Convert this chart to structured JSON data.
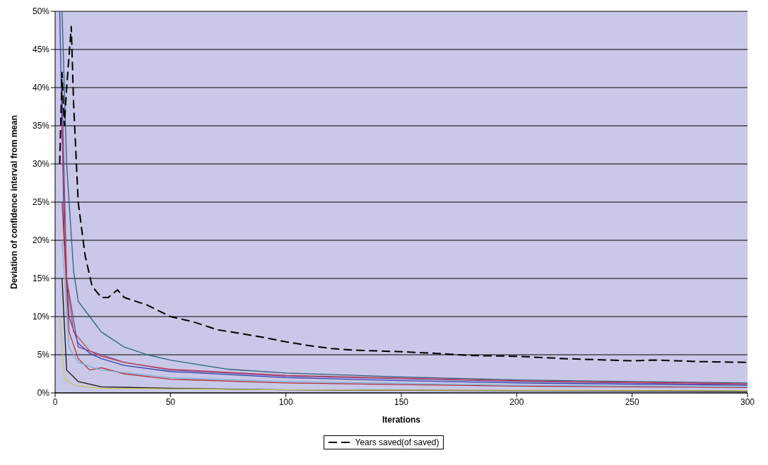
{
  "chart_data": {
    "type": "line",
    "xlabel": "Iterations",
    "ylabel": "Deviation of confidence interval from mean",
    "xlim": [
      0,
      300
    ],
    "xticks": [
      0,
      50,
      100,
      150,
      200,
      250,
      300
    ],
    "ylim": [
      0,
      50
    ],
    "yticks": [
      {
        "value": 0,
        "label": "0%"
      },
      {
        "value": 5,
        "label": "5%"
      },
      {
        "value": 10,
        "label": "10%"
      },
      {
        "value": 15,
        "label": "15%"
      },
      {
        "value": 20,
        "label": "20%"
      },
      {
        "value": 25,
        "label": "25%"
      },
      {
        "value": 30,
        "label": "30%"
      },
      {
        "value": 35,
        "label": "35%"
      },
      {
        "value": 40,
        "label": "40%"
      },
      {
        "value": 45,
        "label": "45%"
      },
      {
        "value": 50,
        "label": "50%"
      }
    ],
    "grid": "y",
    "legend": "bottom",
    "marker": "none",
    "series": [
      {
        "color": "#2f5f7a",
        "x": [
          3,
          5,
          8,
          10,
          15,
          20,
          30,
          40,
          50,
          75,
          100,
          150,
          200,
          250,
          300
        ],
        "values": [
          50,
          30,
          16,
          12,
          10,
          8,
          6,
          5,
          4.3,
          3.1,
          2.6,
          2.1,
          1.7,
          1.5,
          1.3
        ]
      },
      {
        "color": "#3344aa",
        "x": [
          2,
          4,
          6,
          10,
          15,
          20,
          30,
          50,
          100,
          150,
          200,
          300
        ],
        "values": [
          50,
          20,
          10,
          6.5,
          5.2,
          4.5,
          3.6,
          2.8,
          2,
          1.6,
          1.3,
          1
        ]
      },
      {
        "color": "#7a4a9a",
        "x": [
          3,
          5,
          10,
          15,
          20,
          30,
          50,
          100,
          200,
          300
        ],
        "values": [
          40,
          15,
          6,
          5.5,
          5,
          4,
          3,
          2.2,
          1.5,
          1.1
        ]
      },
      {
        "color": "#c0405a",
        "x": [
          3,
          5,
          8,
          15,
          20,
          30,
          50,
          100,
          200,
          300
        ],
        "values": [
          35,
          15,
          8,
          5.5,
          4.8,
          4,
          3.1,
          2.3,
          1.6,
          1.2
        ]
      },
      {
        "color": "#b03030",
        "x": [
          3,
          6,
          10,
          15,
          20,
          30,
          50,
          100,
          200,
          300
        ],
        "values": [
          25,
          8,
          4.5,
          3,
          3.3,
          2.5,
          1.8,
          1.3,
          0.9,
          0.7
        ]
      },
      {
        "color": "#7fb0d8",
        "x": [
          3,
          6,
          10,
          20,
          50,
          100,
          200,
          300
        ],
        "values": [
          20,
          6,
          4,
          3,
          2,
          1.5,
          1,
          0.8
        ]
      },
      {
        "color": "#111111",
        "x": [
          3,
          5,
          10,
          20,
          50,
          100,
          200,
          300
        ],
        "values": [
          15,
          3,
          1.5,
          0.8,
          0.6,
          0.4,
          0.3,
          0.2
        ]
      },
      {
        "color": "#c8c860",
        "x": [
          2,
          4,
          8,
          20,
          100,
          300
        ],
        "values": [
          10,
          2,
          1,
          0.6,
          0.4,
          0.3
        ]
      },
      {
        "name": "Years saved(of saved)",
        "color": "#000000",
        "line_style": "dashed",
        "x": [
          2,
          3,
          4,
          5,
          7,
          8,
          10,
          13,
          16,
          20,
          23,
          27,
          30,
          35,
          40,
          50,
          60,
          70,
          80,
          90,
          100,
          110,
          120,
          130,
          150,
          170,
          180,
          200,
          220,
          240,
          250,
          260,
          280,
          300
        ],
        "values": [
          30,
          42,
          35,
          40,
          48,
          38,
          25,
          18,
          14,
          12.5,
          12.5,
          13.5,
          12.5,
          12,
          11.5,
          10,
          9.3,
          8.3,
          7.8,
          7.3,
          6.7,
          6.2,
          5.8,
          5.6,
          5.4,
          5.1,
          4.9,
          4.8,
          4.5,
          4.3,
          4.2,
          4.3,
          4.1,
          4
        ]
      }
    ]
  }
}
